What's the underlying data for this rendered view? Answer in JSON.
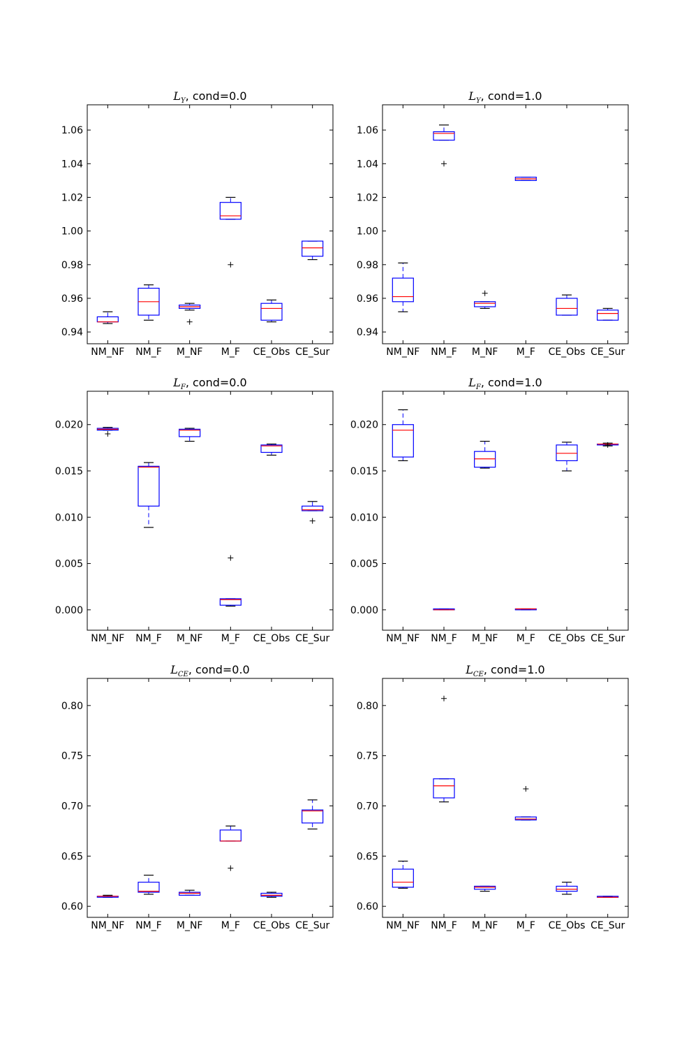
{
  "chart_data": [
    {
      "type": "box",
      "title": {
        "symbol": "L",
        "subscript": "Y",
        "suffix": ", cond=0.0"
      },
      "categories": [
        "NM_NF",
        "NM_F",
        "M_NF",
        "M_F",
        "CE_Obs",
        "CE_Sur"
      ],
      "ylim": [
        0.933,
        1.075
      ],
      "yticks": [
        0.94,
        0.96,
        0.98,
        1.0,
        1.02,
        1.04,
        1.06
      ],
      "ytick_labels": [
        "0.94",
        "0.96",
        "0.98",
        "1.00",
        "1.02",
        "1.04",
        "1.06"
      ],
      "boxes": [
        {
          "whislo": 0.945,
          "q1": 0.946,
          "med": 0.946,
          "q3": 0.949,
          "whishi": 0.952,
          "fliers": []
        },
        {
          "whislo": 0.947,
          "q1": 0.95,
          "med": 0.958,
          "q3": 0.966,
          "whishi": 0.968,
          "fliers": []
        },
        {
          "whislo": 0.953,
          "q1": 0.954,
          "med": 0.955,
          "q3": 0.956,
          "whishi": 0.957,
          "fliers": [
            0.946
          ]
        },
        {
          "whislo": 1.007,
          "q1": 1.007,
          "med": 1.009,
          "q3": 1.017,
          "whishi": 1.02,
          "fliers": [
            0.98
          ]
        },
        {
          "whislo": 0.946,
          "q1": 0.947,
          "med": 0.954,
          "q3": 0.957,
          "whishi": 0.959,
          "fliers": []
        },
        {
          "whislo": 0.983,
          "q1": 0.985,
          "med": 0.99,
          "q3": 0.994,
          "whishi": 0.994,
          "fliers": []
        }
      ]
    },
    {
      "type": "box",
      "title": {
        "symbol": "L",
        "subscript": "Y",
        "suffix": ", cond=1.0"
      },
      "categories": [
        "NM_NF",
        "NM_F",
        "M_NF",
        "M_F",
        "CE_Obs",
        "CE_Sur"
      ],
      "ylim": [
        0.933,
        1.075
      ],
      "yticks": [
        0.94,
        0.96,
        0.98,
        1.0,
        1.02,
        1.04,
        1.06
      ],
      "ytick_labels": [
        "0.94",
        "0.96",
        "0.98",
        "1.00",
        "1.02",
        "1.04",
        "1.06"
      ],
      "boxes": [
        {
          "whislo": 0.952,
          "q1": 0.958,
          "med": 0.961,
          "q3": 0.972,
          "whishi": 0.981,
          "fliers": []
        },
        {
          "whislo": 1.054,
          "q1": 1.054,
          "med": 1.058,
          "q3": 1.059,
          "whishi": 1.063,
          "fliers": [
            1.04
          ]
        },
        {
          "whislo": 0.954,
          "q1": 0.955,
          "med": 0.957,
          "q3": 0.958,
          "whishi": 0.958,
          "fliers": [
            0.963
          ]
        },
        {
          "whislo": 1.03,
          "q1": 1.03,
          "med": 1.031,
          "q3": 1.032,
          "whishi": 1.032,
          "fliers": []
        },
        {
          "whislo": 0.95,
          "q1": 0.95,
          "med": 0.954,
          "q3": 0.96,
          "whishi": 0.962,
          "fliers": []
        },
        {
          "whislo": 0.947,
          "q1": 0.947,
          "med": 0.951,
          "q3": 0.953,
          "whishi": 0.954,
          "fliers": []
        }
      ]
    },
    {
      "type": "box",
      "title": {
        "symbol": "L",
        "subscript": "F",
        "suffix": ", cond=0.0"
      },
      "categories": [
        "NM_NF",
        "NM_F",
        "M_NF",
        "M_F",
        "CE_Obs",
        "CE_Sur"
      ],
      "ylim": [
        -0.0022,
        0.0236
      ],
      "yticks": [
        0.0,
        0.005,
        0.01,
        0.015,
        0.02
      ],
      "ytick_labels": [
        "0.000",
        "0.005",
        "0.010",
        "0.015",
        "0.020"
      ],
      "boxes": [
        {
          "whislo": 0.0194,
          "q1": 0.0194,
          "med": 0.0195,
          "q3": 0.0196,
          "whishi": 0.0197,
          "fliers": [
            0.019
          ]
        },
        {
          "whislo": 0.0089,
          "q1": 0.0112,
          "med": 0.0154,
          "q3": 0.0155,
          "whishi": 0.0159,
          "fliers": []
        },
        {
          "whislo": 0.0182,
          "q1": 0.0187,
          "med": 0.0194,
          "q3": 0.0195,
          "whishi": 0.0196,
          "fliers": []
        },
        {
          "whislo": 0.0004,
          "q1": 0.0005,
          "med": 0.0011,
          "q3": 0.0012,
          "whishi": 0.0012,
          "fliers": [
            0.0056
          ]
        },
        {
          "whislo": 0.0167,
          "q1": 0.017,
          "med": 0.0177,
          "q3": 0.0178,
          "whishi": 0.0179,
          "fliers": []
        },
        {
          "whislo": 0.0107,
          "q1": 0.0107,
          "med": 0.0108,
          "q3": 0.0112,
          "whishi": 0.0117,
          "fliers": [
            0.0096
          ]
        }
      ]
    },
    {
      "type": "box",
      "title": {
        "symbol": "L",
        "subscript": "F",
        "suffix": ", cond=1.0"
      },
      "categories": [
        "NM_NF",
        "NM_F",
        "M_NF",
        "M_F",
        "CE_Obs",
        "CE_Sur"
      ],
      "ylim": [
        -0.0022,
        0.0236
      ],
      "yticks": [
        0.0,
        0.005,
        0.01,
        0.015,
        0.02
      ],
      "ytick_labels": [
        "0.000",
        "0.005",
        "0.010",
        "0.015",
        "0.020"
      ],
      "boxes": [
        {
          "whislo": 0.0161,
          "q1": 0.0165,
          "med": 0.0194,
          "q3": 0.02,
          "whishi": 0.0216,
          "fliers": []
        },
        {
          "whislo": 0.0,
          "q1": 0.0,
          "med": 0.0,
          "q3": 0.0001,
          "whishi": 0.0001,
          "fliers": []
        },
        {
          "whislo": 0.0153,
          "q1": 0.0154,
          "med": 0.0163,
          "q3": 0.0171,
          "whishi": 0.0182,
          "fliers": []
        },
        {
          "whislo": 0.0,
          "q1": 0.0,
          "med": 0.0001,
          "q3": 0.0001,
          "whishi": 0.0001,
          "fliers": []
        },
        {
          "whislo": 0.015,
          "q1": 0.0161,
          "med": 0.0169,
          "q3": 0.0178,
          "whishi": 0.0181,
          "fliers": []
        },
        {
          "whislo": 0.0177,
          "q1": 0.0178,
          "med": 0.0179,
          "q3": 0.0179,
          "whishi": 0.018,
          "fliers": [
            0.0178
          ]
        }
      ]
    },
    {
      "type": "box",
      "title": {
        "symbol": "L",
        "subscript": "CE",
        "suffix": ", cond=0.0"
      },
      "categories": [
        "NM_NF",
        "NM_F",
        "M_NF",
        "M_F",
        "CE_Obs",
        "CE_Sur"
      ],
      "ylim": [
        0.589,
        0.827
      ],
      "yticks": [
        0.6,
        0.65,
        0.7,
        0.75,
        0.8
      ],
      "ytick_labels": [
        "0.60",
        "0.65",
        "0.70",
        "0.75",
        "0.80"
      ],
      "boxes": [
        {
          "whislo": 0.609,
          "q1": 0.609,
          "med": 0.61,
          "q3": 0.61,
          "whishi": 0.611,
          "fliers": []
        },
        {
          "whislo": 0.612,
          "q1": 0.614,
          "med": 0.615,
          "q3": 0.624,
          "whishi": 0.631,
          "fliers": []
        },
        {
          "whislo": 0.611,
          "q1": 0.611,
          "med": 0.613,
          "q3": 0.614,
          "whishi": 0.616,
          "fliers": []
        },
        {
          "whislo": 0.665,
          "q1": 0.665,
          "med": 0.665,
          "q3": 0.676,
          "whishi": 0.68,
          "fliers": [
            0.638
          ]
        },
        {
          "whislo": 0.609,
          "q1": 0.61,
          "med": 0.611,
          "q3": 0.613,
          "whishi": 0.614,
          "fliers": []
        },
        {
          "whislo": 0.677,
          "q1": 0.683,
          "med": 0.695,
          "q3": 0.696,
          "whishi": 0.706,
          "fliers": []
        }
      ]
    },
    {
      "type": "box",
      "title": {
        "symbol": "L",
        "subscript": "CE",
        "suffix": ", cond=1.0"
      },
      "categories": [
        "NM_NF",
        "NM_F",
        "M_NF",
        "M_F",
        "CE_Obs",
        "CE_Sur"
      ],
      "ylim": [
        0.589,
        0.827
      ],
      "yticks": [
        0.6,
        0.65,
        0.7,
        0.75,
        0.8
      ],
      "ytick_labels": [
        "0.60",
        "0.65",
        "0.70",
        "0.75",
        "0.80"
      ],
      "boxes": [
        {
          "whislo": 0.618,
          "q1": 0.619,
          "med": 0.624,
          "q3": 0.637,
          "whishi": 0.645,
          "fliers": []
        },
        {
          "whislo": 0.704,
          "q1": 0.708,
          "med": 0.72,
          "q3": 0.727,
          "whishi": 0.727,
          "fliers": [
            0.807
          ]
        },
        {
          "whislo": 0.615,
          "q1": 0.617,
          "med": 0.619,
          "q3": 0.62,
          "whishi": 0.62,
          "fliers": []
        },
        {
          "whislo": 0.686,
          "q1": 0.686,
          "med": 0.687,
          "q3": 0.689,
          "whishi": 0.689,
          "fliers": [
            0.717
          ]
        },
        {
          "whislo": 0.612,
          "q1": 0.615,
          "med": 0.617,
          "q3": 0.62,
          "whishi": 0.624,
          "fliers": []
        },
        {
          "whislo": 0.609,
          "q1": 0.609,
          "med": 0.609,
          "q3": 0.61,
          "whishi": 0.61,
          "fliers": []
        }
      ]
    }
  ],
  "style": {
    "box_color": "#0000ff",
    "median_color": "#ff0000",
    "whisker_cap_color": "#000000",
    "flier_marker": "+",
    "axes_color": "#000000",
    "background": "#ffffff"
  }
}
